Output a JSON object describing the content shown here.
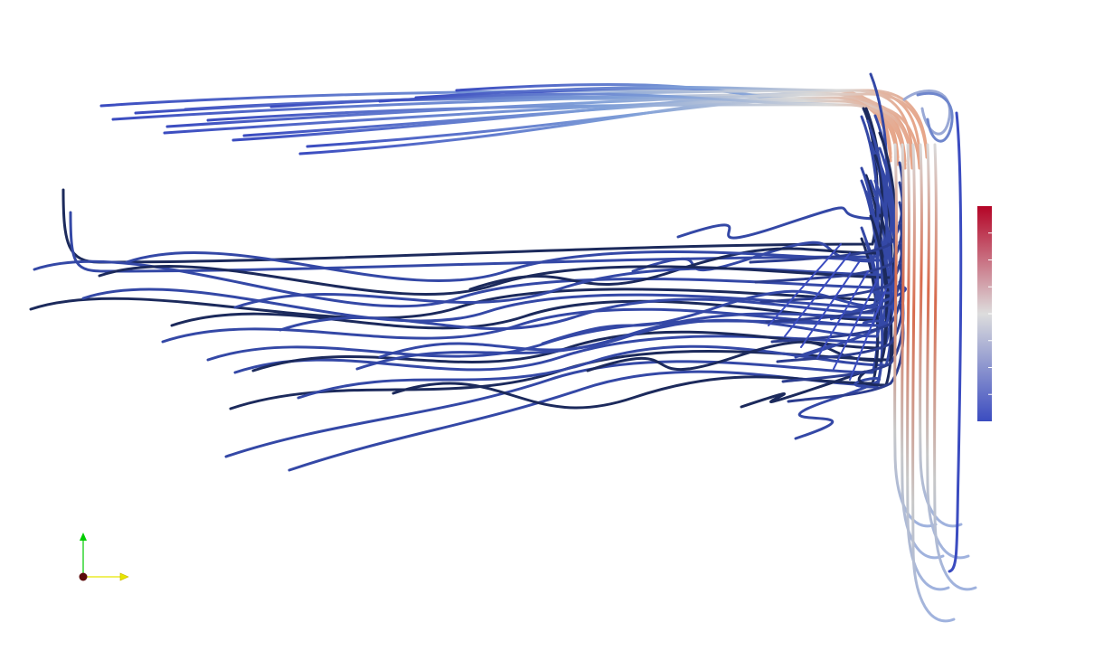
{
  "scene": {
    "background": "#ffffff"
  },
  "streamlines": {
    "low_color": "#3b4cc0",
    "mid_color": "#dddddd",
    "high_color": "#b40426",
    "dark_color": "#1c2a5c"
  },
  "color_legend": {
    "colormap": "cool-to-warm",
    "top_color": "#b40426",
    "middle_color": "#dddddd",
    "bottom_color": "#3b4cc0",
    "tick_count": 7
  },
  "orientation_axes": {
    "x_axis_color": "#e6e600",
    "y_axis_color": "#00cc00",
    "origin_color": "#5a0a0a"
  }
}
